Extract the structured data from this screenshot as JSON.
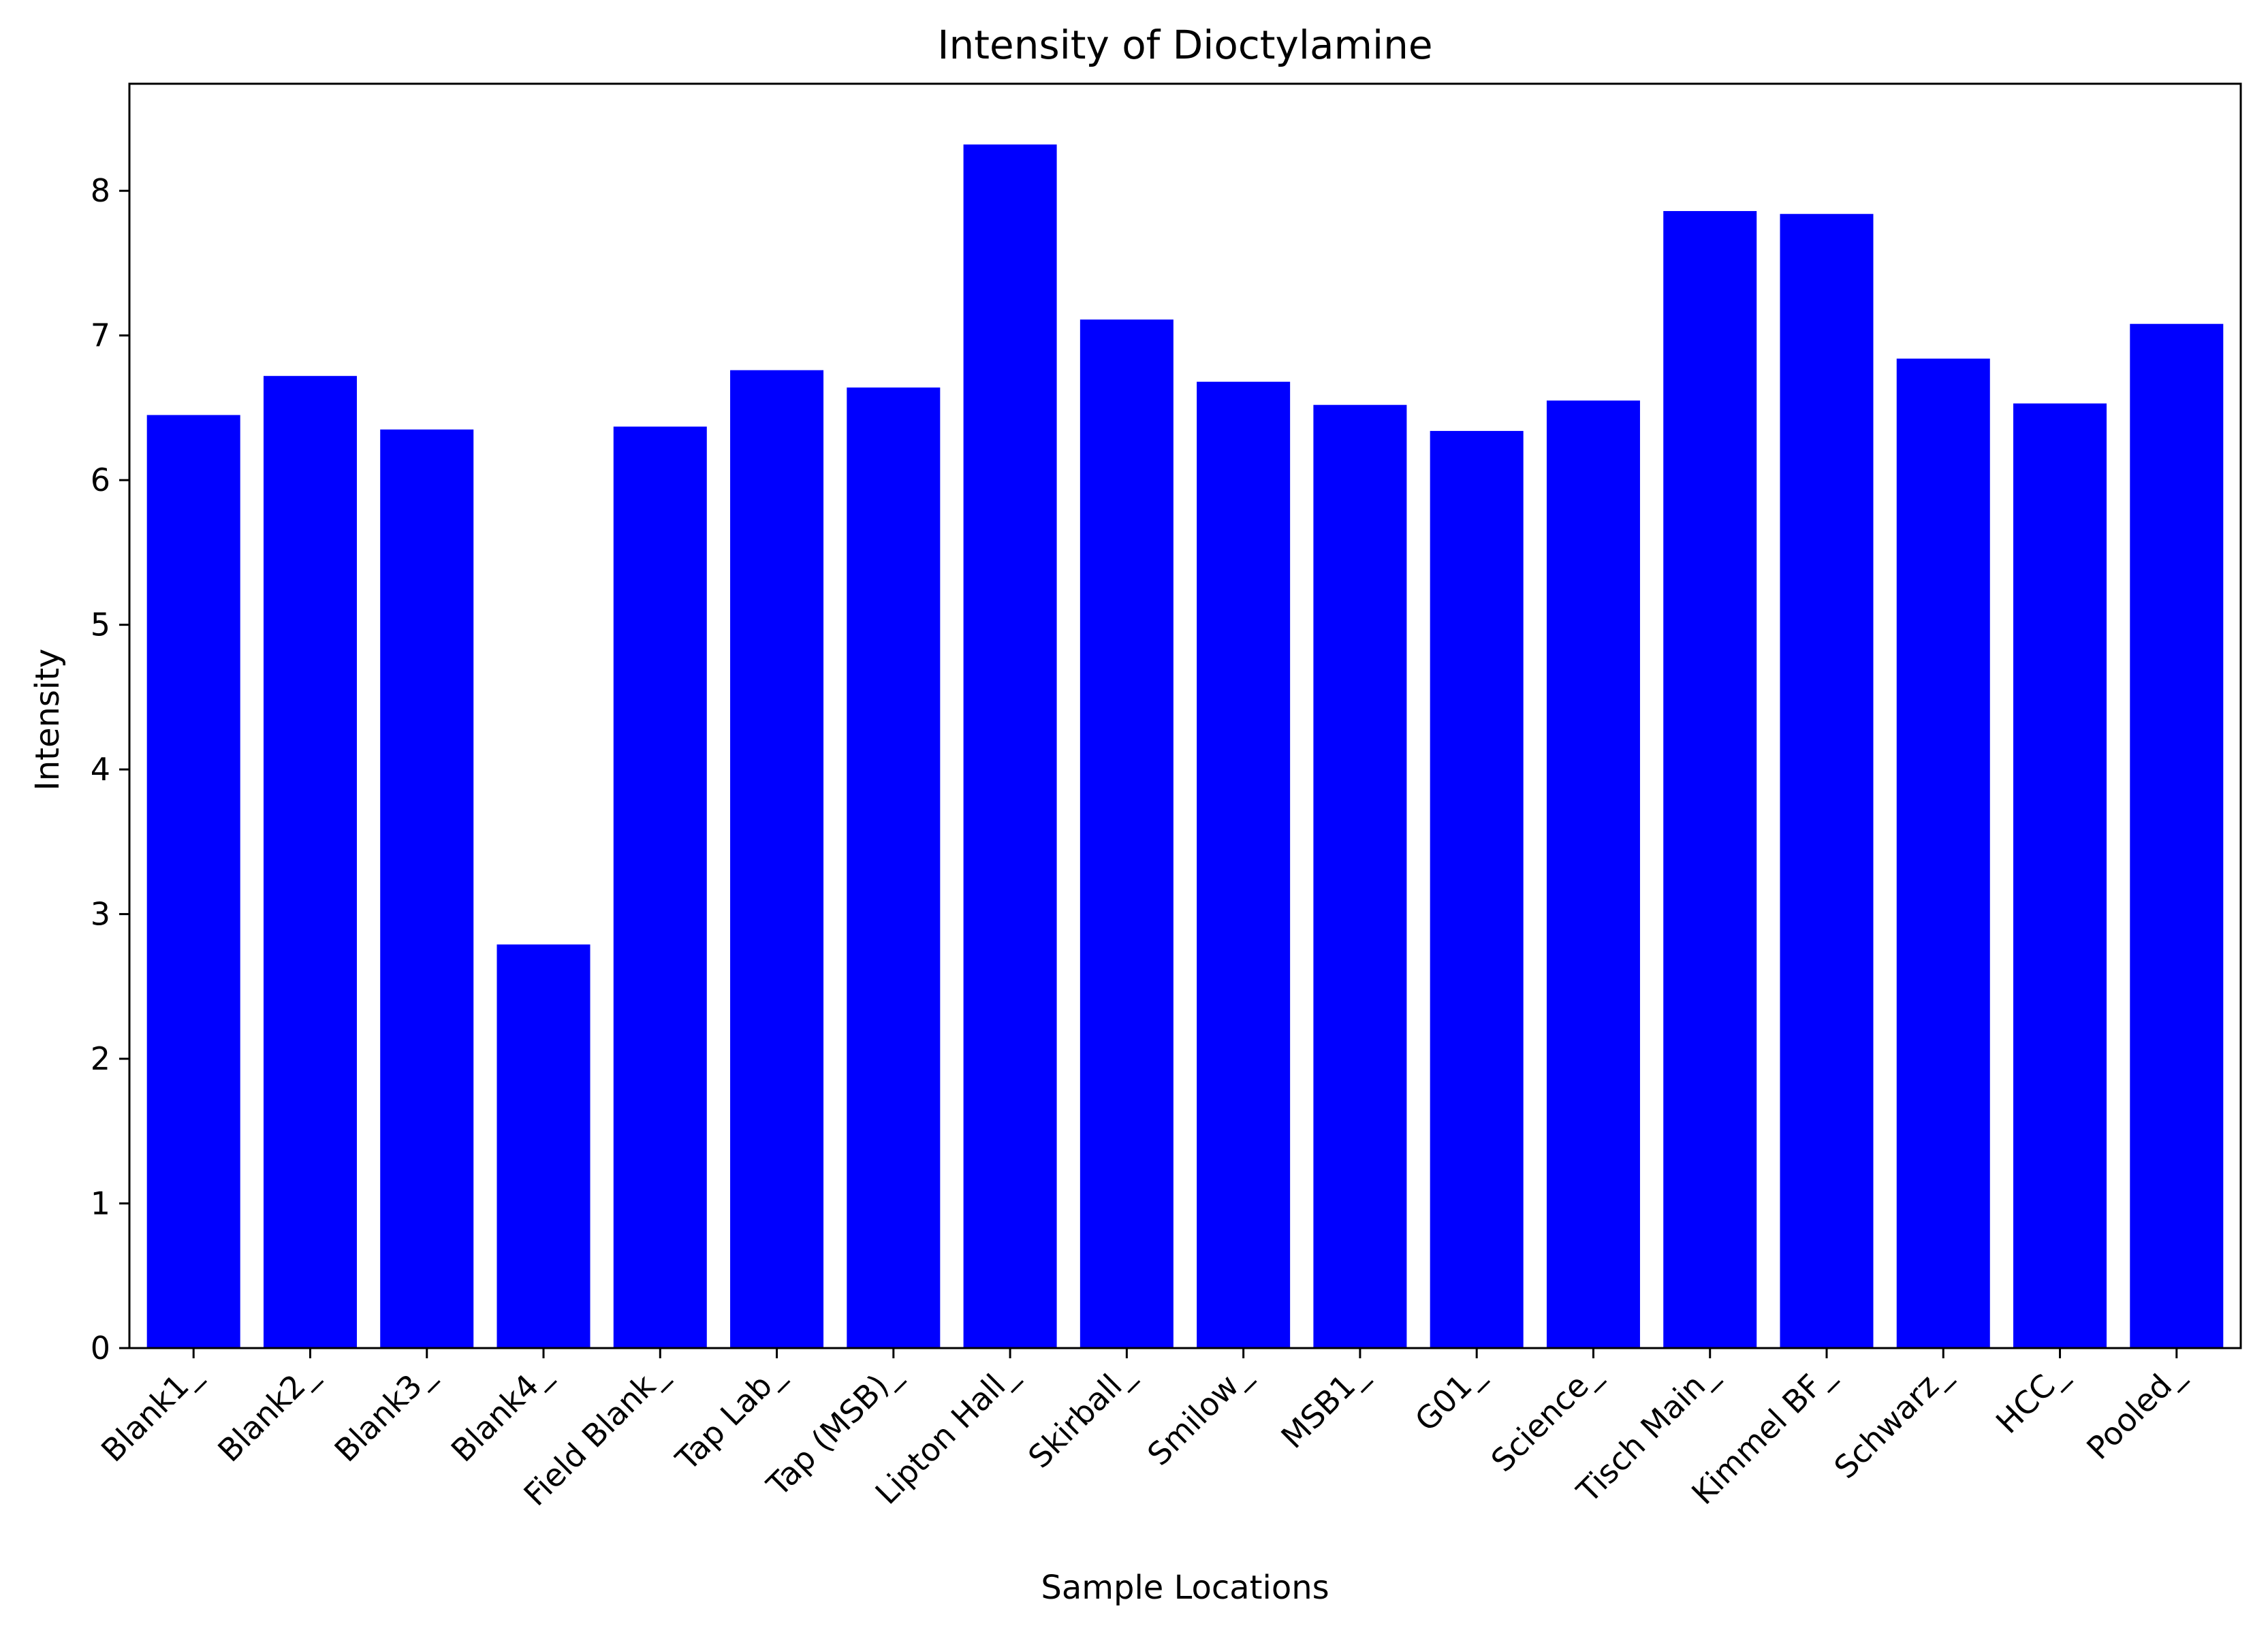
{
  "chart_data": {
    "type": "bar",
    "title": "Intensity of Dioctylamine",
    "xlabel": "Sample Locations",
    "ylabel": "Intensity",
    "categories": [
      "Blank1_",
      "Blank2_",
      "Blank3_",
      "Blank4_",
      "Field Blank_",
      "Tap Lab_",
      "Tap (MSB)_",
      "Lipton Hall_",
      "Skirball_",
      "Smilow_",
      "MSB1_",
      "G01_",
      "Science_",
      "Tisch Main_",
      "Kimmel BF_",
      "Schwarz_",
      "HCC_",
      "Pooled_"
    ],
    "values": [
      6.45,
      6.72,
      6.35,
      2.79,
      6.37,
      6.76,
      6.64,
      8.32,
      7.11,
      6.68,
      6.52,
      6.34,
      6.55,
      7.86,
      7.84,
      6.84,
      6.53,
      7.08
    ],
    "ylim": [
      0,
      8.74
    ],
    "yticks": [
      0,
      1,
      2,
      3,
      4,
      5,
      6,
      7,
      8
    ],
    "bar_color": "#0000ff",
    "grid": false,
    "legend": "none"
  }
}
